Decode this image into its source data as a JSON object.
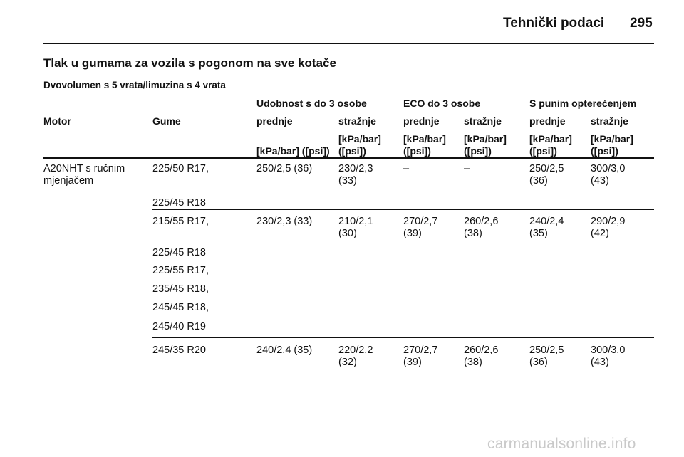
{
  "page": {
    "running_title": "Tehnički podaci",
    "number": "295"
  },
  "section_title": "Tlak u gumama za vozila s pogonom na sve kotače",
  "subsection_title": "Dvovolumen s 5 vrata/limuzina s 4 vrata",
  "table": {
    "group_headers": [
      "Udobnost s do 3 osobe",
      "ECO do 3 osobe",
      "S punim opterećenjem"
    ],
    "column_headers": [
      "Motor",
      "Gume",
      "prednje",
      "stražnje",
      "prednje",
      "stražnje",
      "prednje",
      "stražnje"
    ],
    "unit_headers": [
      "[kPa/bar] ([psi])",
      "[kPa/bar]\n([psi])",
      "[kPa/bar]\n([psi])",
      "[kPa/bar]\n([psi])",
      "[kPa/bar]\n([psi])",
      "[kPa/bar]\n([psi])"
    ],
    "groups": [
      {
        "motor": "A20NHT s ručnim\nmjenjačem",
        "tyres": [
          "225/50 R17,",
          "225/45 R18"
        ],
        "values": [
          "250/2,5 (36)",
          "230/2,3\n(33)",
          "–",
          "–",
          "250/2,5\n(36)",
          "300/3,0\n(43)"
        ]
      },
      {
        "motor": "",
        "tyres": [
          "215/55 R17,",
          "225/45 R18",
          "225/55 R17,",
          "235/45 R18,",
          "245/45 R18,",
          "245/40 R19"
        ],
        "values": [
          "230/2,3 (33)",
          "210/2,1\n(30)",
          "270/2,7\n(39)",
          "260/2,6\n(38)",
          "240/2,4\n(35)",
          "290/2,9\n(42)"
        ]
      },
      {
        "motor": "",
        "tyres": [
          "245/35 R20"
        ],
        "values": [
          "240/2,4 (35)",
          "220/2,2\n(32)",
          "270/2,7\n(39)",
          "260/2,6\n(38)",
          "250/2,5\n(36)",
          "300/3,0\n(43)"
        ]
      }
    ]
  },
  "watermark": "carmanualsonline.info"
}
